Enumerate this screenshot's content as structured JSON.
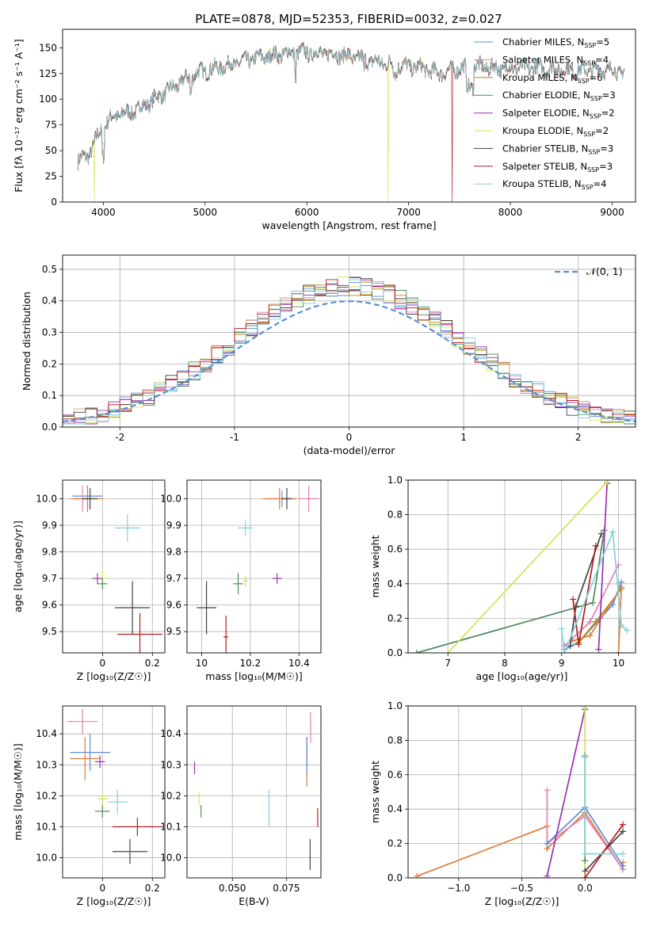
{
  "figure": {
    "title": "PLATE=0878, MJD=52353, FIBERID=0032, z=0.027"
  },
  "chart_data": [
    {
      "id": "spectrum",
      "type": "line",
      "xlabel": "wavelength [Angstrom, rest frame]",
      "ylabel": "Flux [fλ 10⁻¹⁷ erg cm⁻² s⁻¹ A⁻¹]",
      "xlim": [
        3600,
        9230
      ],
      "ylim": [
        0,
        168
      ],
      "xticks": [
        4000,
        5000,
        6000,
        7000,
        8000,
        9000
      ],
      "yticks": [
        0,
        25,
        50,
        75,
        100,
        125,
        150
      ],
      "grid": false,
      "legend_position": "upper right",
      "series_names": [
        "Chabrier MILES, N_SSP=5",
        "Salpeter MILES, N_SSP=4",
        "Kroupa MILES, N_SSP=6",
        "Chabrier ELODIE, N_SSP=3",
        "Salpeter ELODIE, N_SSP=2",
        "Kroupa ELODIE, N_SSP=2",
        "Chabrier STELIB, N_SSP=3",
        "Salpeter STELIB, N_SSP=3",
        "Kroupa STELIB, N_SSP=4"
      ],
      "legend": [
        {
          "name": "Chabrier MILES, N",
          "sub": "SSP",
          "tail": "=5",
          "color": "#5b8ed6"
        },
        {
          "name": "Salpeter MILES, N",
          "sub": "SSP",
          "tail": "=4",
          "color": "#e57fb7"
        },
        {
          "name": "Kroupa MILES, N",
          "sub": "SSP",
          "tail": "=6",
          "color": "#b8860b"
        },
        {
          "name": "Chabrier ELODIE, N",
          "sub": "SSP",
          "tail": "=3",
          "color": "#4f8a5b"
        },
        {
          "name": "Salpeter ELODIE, N",
          "sub": "SSP",
          "tail": "=2",
          "color": "#9b30b0"
        },
        {
          "name": "Kroupa ELODIE, N",
          "sub": "SSP",
          "tail": "=2",
          "color": "#d4e157"
        },
        {
          "name": "Chabrier STELIB, N",
          "sub": "SSP",
          "tail": "=3",
          "color": "#444444"
        },
        {
          "name": "Salpeter STELIB, N",
          "sub": "SSP",
          "tail": "=3",
          "color": "#b71c1c"
        },
        {
          "name": "Kroupa STELIB, N",
          "sub": "SSP",
          "tail": "=4",
          "color": "#7fd3dc"
        }
      ],
      "continuum": {
        "x": [
          3750,
          3850,
          3950,
          4050,
          4150,
          4300,
          4500,
          4700,
          4900,
          5100,
          5300,
          5500,
          5700,
          5900,
          6100,
          6300,
          6500,
          6700,
          6900,
          7100,
          7300,
          7500,
          7700,
          7900,
          8100,
          8300,
          8500,
          8700,
          8900,
          9100
        ],
        "y": [
          40,
          45,
          65,
          80,
          85,
          88,
          100,
          112,
          125,
          130,
          135,
          140,
          143,
          146,
          145,
          144,
          140,
          136,
          133,
          131,
          125,
          130,
          132,
          130,
          131,
          130,
          129,
          128,
          129,
          127
        ]
      },
      "dips": [
        {
          "x": 3910,
          "series": "Kroupa ELODIE",
          "to": 0
        },
        {
          "x": 6800,
          "series": "Kroupa ELODIE",
          "to": 0
        },
        {
          "x": 7430,
          "series": "Salpeter STELIB",
          "to": 0
        }
      ]
    },
    {
      "id": "residuals",
      "type": "line",
      "xlabel": "(data-model)/error",
      "ylabel": "Normed distribution",
      "xlim": [
        -2.5,
        2.5
      ],
      "ylim": [
        0,
        0.545
      ],
      "xticks": [
        -2,
        -1,
        0,
        1,
        2
      ],
      "yticks": [
        0.0,
        0.1,
        0.2,
        0.3,
        0.4,
        0.5
      ],
      "grid": true,
      "legend_position": "upper right",
      "reference_curve": {
        "name": "𝒩(0, 1)",
        "mean": 0,
        "sigma": 1,
        "color": "#5b8ed6"
      },
      "histogram_bin_width": 0.1
    },
    {
      "id": "age-vs-Z",
      "type": "scatter",
      "xlabel": "Z [log₁₀(Z/Z☉)]",
      "ylabel": "age  [log₁₀(age/yr)]",
      "xlim": [
        -0.16,
        0.25
      ],
      "ylim": [
        9.42,
        10.07
      ],
      "xticks": [
        0.0,
        0.2
      ],
      "yticks": [
        9.5,
        9.6,
        9.7,
        9.8,
        9.9,
        10.0
      ],
      "grid": true,
      "points": [
        {
          "x": -0.06,
          "y": 10.01,
          "xerr": 0.06,
          "yerr": 0.04,
          "color": "#5b8ed6"
        },
        {
          "x": -0.08,
          "y": 10.0,
          "xerr": 0.05,
          "yerr": 0.05,
          "color": "#e57fb7"
        },
        {
          "x": -0.06,
          "y": 10.0,
          "xerr": 0.06,
          "yerr": 0.05,
          "color": "#e07b39"
        },
        {
          "x": -0.05,
          "y": 10.0,
          "xerr": 0.03,
          "yerr": 0.04,
          "color": "#444444"
        },
        {
          "x": 0.1,
          "y": 9.89,
          "xerr": 0.05,
          "yerr": 0.05,
          "color": "#7fd3dc"
        },
        {
          "x": 0.0,
          "y": 9.7,
          "xerr": 0.02,
          "yerr": 0.03,
          "color": "#d4e157"
        },
        {
          "x": -0.02,
          "y": 9.7,
          "xerr": 0.02,
          "yerr": 0.02,
          "color": "#9b30b0"
        },
        {
          "x": 0.0,
          "y": 9.68,
          "xerr": 0.02,
          "yerr": 0.02,
          "color": "#4f8a5b"
        },
        {
          "x": 0.12,
          "y": 9.59,
          "xerr": 0.07,
          "yerr": 0.1,
          "color": "#444444"
        },
        {
          "x": 0.15,
          "y": 9.49,
          "xerr": 0.09,
          "yerr": 0.08,
          "color": "#b71c1c"
        }
      ]
    },
    {
      "id": "age-vs-mass",
      "type": "scatter",
      "xlabel": "mass [log₁₀(M/M☉)]",
      "ylabel": "",
      "xlim": [
        9.94,
        10.49
      ],
      "ylim": [
        9.42,
        10.07
      ],
      "xticks": [
        10.0,
        10.2,
        10.4
      ],
      "yticks": [
        9.5,
        9.6,
        9.7,
        9.8,
        9.9,
        10.0
      ],
      "grid": true,
      "points": [
        {
          "x": 10.33,
          "y": 10.0,
          "xerr": 0.06,
          "yerr": 0.03,
          "color": "#5b8ed6"
        },
        {
          "x": 10.44,
          "y": 10.0,
          "xerr": 0.04,
          "yerr": 0.05,
          "color": "#e57fb7"
        },
        {
          "x": 10.32,
          "y": 10.0,
          "xerr": 0.07,
          "yerr": 0.04,
          "color": "#e07b39"
        },
        {
          "x": 10.35,
          "y": 10.0,
          "xerr": 0.02,
          "yerr": 0.04,
          "color": "#444444"
        },
        {
          "x": 10.18,
          "y": 9.89,
          "xerr": 0.03,
          "yerr": 0.03,
          "color": "#7fd3dc"
        },
        {
          "x": 10.18,
          "y": 9.69,
          "xerr": 0.01,
          "yerr": 0.02,
          "color": "#d4e157"
        },
        {
          "x": 10.31,
          "y": 9.7,
          "xerr": 0.02,
          "yerr": 0.02,
          "color": "#9b30b0"
        },
        {
          "x": 10.15,
          "y": 9.68,
          "xerr": 0.02,
          "yerr": 0.04,
          "color": "#4f8a5b"
        },
        {
          "x": 10.02,
          "y": 9.59,
          "xerr": 0.04,
          "yerr": 0.1,
          "color": "#444444"
        },
        {
          "x": 10.1,
          "y": 9.48,
          "xerr": 0.01,
          "yerr": 0.08,
          "color": "#b71c1c"
        }
      ]
    },
    {
      "id": "weight-vs-age",
      "type": "line",
      "xlabel": "age  [log₁₀(age/yr)]",
      "ylabel": "mass weight",
      "xlim": [
        6.3,
        10.3
      ],
      "ylim": [
        0,
        1.0
      ],
      "xticks": [
        7,
        8,
        9,
        10
      ],
      "yticks": [
        0.0,
        0.2,
        0.4,
        0.6,
        0.8,
        1.0
      ],
      "grid": true,
      "series": [
        {
          "color": "#5b8ed6",
          "x": [
            9.05,
            9.3,
            9.9,
            10.05
          ],
          "y": [
            0.02,
            0.06,
            0.28,
            0.41
          ]
        },
        {
          "color": "#e57fb7",
          "x": [
            9.05,
            9.5,
            10.0
          ],
          "y": [
            0.04,
            0.18,
            0.51
          ]
        },
        {
          "color": "#b8860b",
          "x": [
            9.3,
            9.6,
            10.05
          ],
          "y": [
            0.06,
            0.18,
            0.37
          ]
        },
        {
          "color": "#e07b39",
          "x": [
            9.2,
            9.5,
            10.05,
            10.0
          ],
          "y": [
            0.07,
            0.1,
            0.38,
            0.0
          ]
        },
        {
          "color": "#4f8a5b",
          "x": [
            6.45,
            9.55,
            9.75
          ],
          "y": [
            0.0,
            0.29,
            0.71
          ]
        },
        {
          "color": "#9b30b0",
          "x": [
            9.65,
            9.8
          ],
          "y": [
            0.02,
            0.98
          ]
        },
        {
          "color": "#d4e157",
          "x": [
            7.0,
            9.8
          ],
          "y": [
            0.0,
            0.99
          ]
        },
        {
          "color": "#444444",
          "x": [
            9.15,
            9.25,
            9.7
          ],
          "y": [
            0.04,
            0.27,
            0.69
          ]
        },
        {
          "color": "#b71c1c",
          "x": [
            9.2,
            9.3,
            9.6
          ],
          "y": [
            0.31,
            0.05,
            0.62
          ]
        },
        {
          "color": "#7fd3dc",
          "x": [
            9.0,
            9.05,
            9.9,
            10.05,
            10.15
          ],
          "y": [
            0.14,
            0.0,
            0.7,
            0.16,
            0.13
          ]
        }
      ]
    },
    {
      "id": "mass-vs-Z",
      "type": "scatter",
      "xlabel": "Z [log₁₀(Z/Z☉)]",
      "ylabel": "mass [log₁₀(M/M☉)]",
      "xlim": [
        -0.16,
        0.25
      ],
      "ylim": [
        9.935,
        10.49
      ],
      "xticks": [
        0.0,
        0.2
      ],
      "yticks": [
        10.0,
        10.1,
        10.2,
        10.3,
        10.4
      ],
      "grid": true,
      "points": [
        {
          "x": -0.08,
          "y": 10.44,
          "xerr": 0.06,
          "yerr": 0.04,
          "color": "#e57fb7"
        },
        {
          "x": -0.05,
          "y": 10.34,
          "xerr": 0.08,
          "yerr": 0.06,
          "color": "#5b8ed6"
        },
        {
          "x": -0.07,
          "y": 10.32,
          "xerr": 0.06,
          "yerr": 0.07,
          "color": "#e07b39"
        },
        {
          "x": -0.01,
          "y": 10.31,
          "xerr": 0.02,
          "yerr": 0.02,
          "color": "#9b30b0"
        },
        {
          "x": 0.0,
          "y": 10.19,
          "xerr": 0.02,
          "yerr": 0.02,
          "color": "#d4e157"
        },
        {
          "x": 0.06,
          "y": 10.18,
          "xerr": 0.04,
          "yerr": 0.04,
          "color": "#7fd3dc"
        },
        {
          "x": 0.0,
          "y": 10.15,
          "xerr": 0.03,
          "yerr": 0.02,
          "color": "#4f8a5b"
        },
        {
          "x": 0.14,
          "y": 10.1,
          "xerr": 0.1,
          "yerr": 0.03,
          "color": "#b71c1c"
        },
        {
          "x": 0.11,
          "y": 10.02,
          "xerr": 0.07,
          "yerr": 0.04,
          "color": "#444444"
        }
      ]
    },
    {
      "id": "mass-vs-EBV",
      "type": "scatter",
      "xlabel": "E(B-V)",
      "ylabel": "",
      "xlim": [
        0.029,
        0.091
      ],
      "ylim": [
        9.935,
        10.49
      ],
      "xticks": [
        0.05,
        0.075
      ],
      "xticklabels": [
        "0.050",
        "0.075"
      ],
      "yticks": [
        10.0,
        10.1,
        10.2,
        10.3,
        10.4
      ],
      "grid": true,
      "points": [
        {
          "x": 0.0325,
          "y": 10.29,
          "yerr": 0.02,
          "color": "#9b30b0"
        },
        {
          "x": 0.0345,
          "y": 10.19,
          "yerr": 0.02,
          "color": "#d4e157"
        },
        {
          "x": 0.0355,
          "y": 10.15,
          "yerr": 0.02,
          "color": "#4f8a5b"
        },
        {
          "x": 0.067,
          "y": 10.16,
          "yerr": 0.06,
          "color": "#7fd3dc"
        },
        {
          "x": 0.0845,
          "y": 10.31,
          "yerr": 0.08,
          "color": "#e07b39"
        },
        {
          "x": 0.0845,
          "y": 10.33,
          "yerr": 0.06,
          "color": "#5b8ed6"
        },
        {
          "x": 0.0862,
          "y": 10.42,
          "yerr": 0.05,
          "color": "#e57fb7"
        },
        {
          "x": 0.0895,
          "y": 10.13,
          "yerr": 0.03,
          "color": "#b71c1c"
        },
        {
          "x": 0.086,
          "y": 10.01,
          "yerr": 0.05,
          "color": "#444444"
        }
      ]
    },
    {
      "id": "weight-vs-Z",
      "type": "line",
      "xlabel": "Z [log₁₀(Z/Z☉)]",
      "ylabel": "mass weight",
      "xlim": [
        -1.4,
        0.4
      ],
      "ylim": [
        0,
        1.0
      ],
      "xticks": [
        -1.0,
        -0.5,
        0.0
      ],
      "xticklabels": [
        "−1.0",
        "−0.5",
        "0.0"
      ],
      "yticks": [
        0.0,
        0.2,
        0.4,
        0.6,
        0.8,
        1.0
      ],
      "grid": true,
      "series": [
        {
          "color": "#e07b39",
          "x": [
            -1.33,
            -0.3,
            -0.3,
            0.0,
            0.3,
            0.3
          ],
          "y": [
            0.01,
            0.3,
            0.17,
            0.38,
            0.05,
            0.09
          ]
        },
        {
          "color": "#e57fb7",
          "x": [
            -0.3,
            -0.3,
            0.0,
            0.3
          ],
          "y": [
            0.51,
            0.2,
            0.36,
            0.05
          ]
        },
        {
          "color": "#5b8ed6",
          "x": [
            -0.3,
            0.0,
            0.3
          ],
          "y": [
            0.2,
            0.41,
            0.07
          ]
        },
        {
          "color": "#9b30b0",
          "x": [
            -0.3,
            0.0
          ],
          "y": [
            0.01,
            0.98
          ]
        },
        {
          "color": "#d4e157",
          "x": [
            0.0,
            0.0
          ],
          "y": [
            0.0,
            0.99
          ]
        },
        {
          "color": "#444444",
          "x": [
            0.0,
            0.3
          ],
          "y": [
            0.04,
            0.27
          ]
        },
        {
          "color": "#b71c1c",
          "x": [
            0.0,
            0.3
          ],
          "y": [
            0.0,
            0.31
          ]
        },
        {
          "color": "#4f8a5b",
          "x": [
            0.0,
            0.0
          ],
          "y": [
            0.1,
            0.71
          ]
        },
        {
          "color": "#7fd3dc",
          "x": [
            0.0,
            0.0,
            0.3
          ],
          "y": [
            0.7,
            0.14,
            0.14
          ]
        }
      ]
    }
  ]
}
